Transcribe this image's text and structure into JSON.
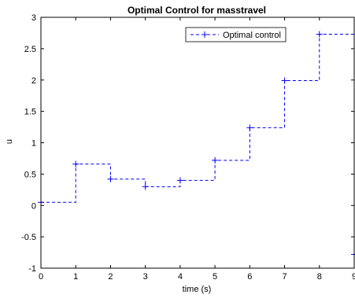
{
  "window": {
    "title": ""
  },
  "chart_data": {
    "type": "line",
    "title": "Optimal Control for masstravel",
    "xlabel": "time (s)",
    "ylabel": "u",
    "xlim": [
      0,
      9
    ],
    "ylim": [
      -1,
      3
    ],
    "xticks": [
      "0",
      "1",
      "2",
      "3",
      "4",
      "5",
      "6",
      "7",
      "8",
      "9"
    ],
    "yticks": [
      "-1",
      "-0.5",
      "0",
      "0.5",
      "1",
      "1.5",
      "2",
      "2.5",
      "3"
    ],
    "grid": false,
    "legend_position": "top-right",
    "step": "post",
    "marker": "+",
    "line_style": "dashed",
    "series": [
      {
        "name": "Optimal control",
        "color": "#0000ff",
        "x": [
          0,
          1,
          2,
          3,
          4,
          5,
          6,
          7,
          8,
          9
        ],
        "values": [
          0.05,
          0.66,
          0.42,
          0.3,
          0.4,
          0.72,
          1.24,
          1.99,
          2.73,
          -0.78
        ]
      }
    ]
  }
}
